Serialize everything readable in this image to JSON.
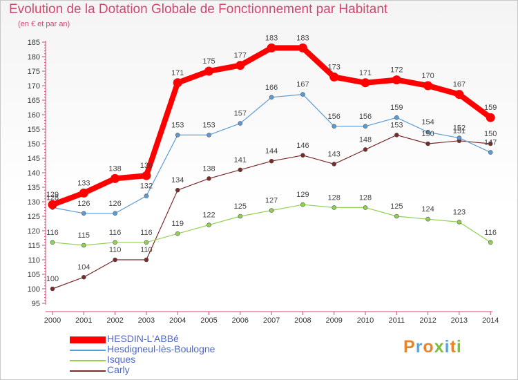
{
  "title": "Evolution de la Dotation Globale de Fonctionnement par Habitant",
  "subtitle": "(en € et par an)",
  "logo": "Proxiti",
  "chart_data": {
    "type": "line",
    "title": "Evolution de la Dotation Globale de Fonctionnement par Habitant",
    "subtitle": "(en € et par an)",
    "x": [
      "2000",
      "2001",
      "2002",
      "2003",
      "2004",
      "2005",
      "2006",
      "2007",
      "2008",
      "2009",
      "2010",
      "2011",
      "2012",
      "2013",
      "2014"
    ],
    "ylim": [
      95,
      185
    ],
    "yticks": [
      95,
      100,
      105,
      110,
      115,
      120,
      125,
      130,
      135,
      140,
      145,
      150,
      155,
      160,
      165,
      170,
      175,
      180,
      185
    ],
    "grid": false,
    "legend_position": "bottom-left",
    "series": [
      {
        "name": "HESDIN-L'ABBé",
        "color": "#ff0000",
        "values": [
          129,
          133,
          138,
          139,
          171,
          175,
          177,
          183,
          183,
          173,
          171,
          172,
          170,
          167,
          159
        ]
      },
      {
        "name": "Hesdigneul-lès-Boulogne",
        "color": "#5b9bd5",
        "values": [
          128,
          126,
          126,
          132,
          153,
          153,
          157,
          166,
          167,
          156,
          156,
          159,
          154,
          152,
          147
        ]
      },
      {
        "name": "Isques",
        "color": "#92d050",
        "values": [
          116,
          115,
          116,
          116,
          119,
          122,
          125,
          127,
          129,
          128,
          128,
          125,
          124,
          123,
          116
        ]
      },
      {
        "name": "Carly",
        "color": "#7b2a2a",
        "values": [
          100,
          104,
          110,
          110,
          134,
          138,
          141,
          144,
          146,
          143,
          148,
          153,
          150,
          151,
          150
        ]
      }
    ]
  }
}
